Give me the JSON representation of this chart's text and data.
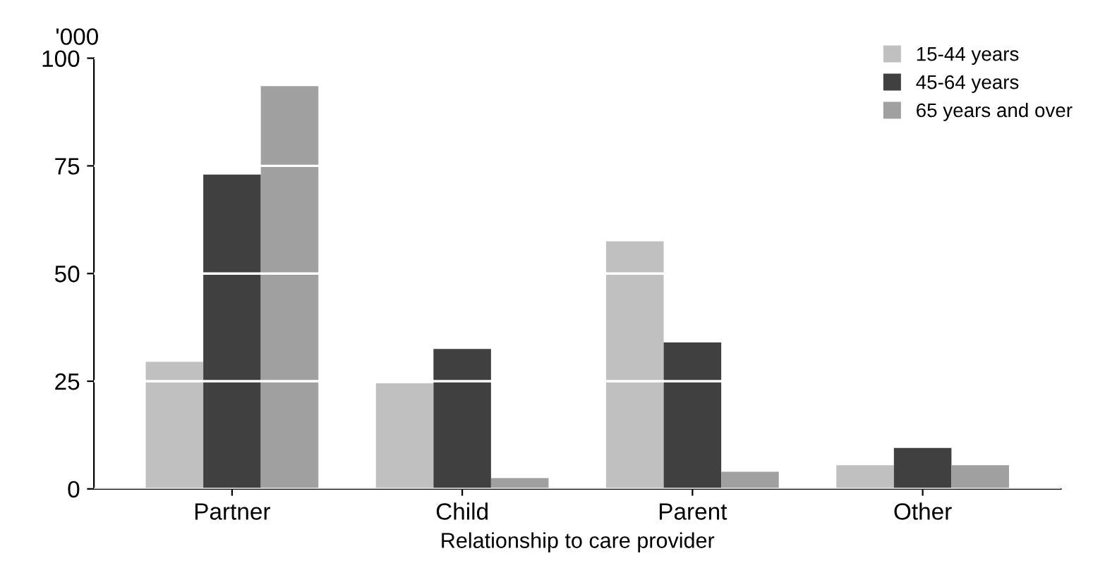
{
  "chart_data": {
    "type": "bar",
    "ylabel": "'000",
    "xlabel": "Relationship to care provider",
    "categories": [
      "Partner",
      "Child",
      "Parent",
      "Other"
    ],
    "series": [
      {
        "name": "15-44 years",
        "color": "#c0c0c0",
        "values": [
          29.5,
          24.5,
          57.5,
          5.5
        ]
      },
      {
        "name": "45-64 years",
        "color": "#404040",
        "values": [
          73,
          32.5,
          34,
          9.5
        ]
      },
      {
        "name": "65 years and over",
        "color": "#a0a0a0",
        "values": [
          93.5,
          2.5,
          4,
          5.5
        ]
      }
    ],
    "ylim": [
      0,
      100
    ],
    "yticks": [
      0,
      25,
      50,
      75,
      100
    ],
    "grid": "y",
    "legend": "top right"
  }
}
